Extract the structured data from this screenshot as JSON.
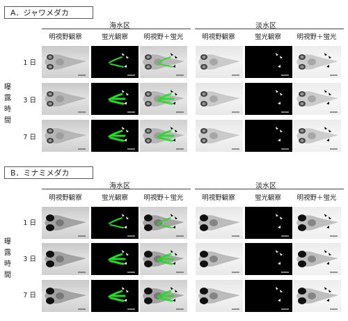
{
  "sectionA": {
    "label": "A．ジャワメダカ",
    "seawater": "海水区",
    "freshwater": "淡水区",
    "cols": [
      "明視野観察",
      "蛍光観察",
      "明視野＋蛍光"
    ],
    "rows": [
      "1 日",
      "3 日",
      "7 日"
    ],
    "exposure": [
      "曝",
      "露",
      "時",
      "間"
    ]
  },
  "sectionB": {
    "label": "B．ミナミメダカ",
    "seawater": "海水区",
    "freshwater": "淡水区",
    "cols": [
      "明視野観察",
      "蛍光観察",
      "明視野＋蛍光"
    ],
    "rows": [
      "1 日",
      "3 日",
      "7 日"
    ],
    "exposure": [
      "曝",
      "露",
      "時",
      "間"
    ]
  },
  "colors": {
    "fluorescence": "#22dd22",
    "fluor_bg": "#000000",
    "arrow_on_dark": "#ffffff",
    "arrow_on_light": "#000000"
  }
}
